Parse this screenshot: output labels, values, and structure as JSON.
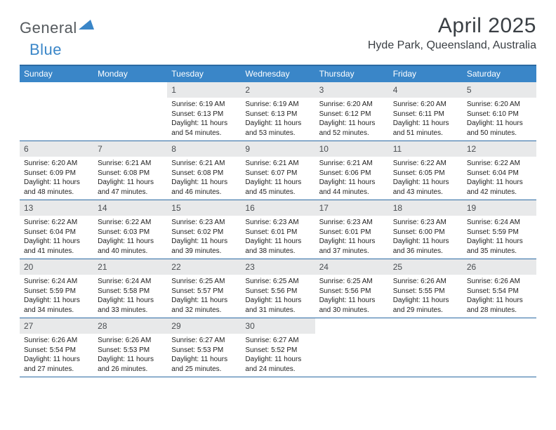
{
  "brand": {
    "part1": "General",
    "part2": "Blue"
  },
  "title": "April 2025",
  "location": "Hyde Park, Queensland, Australia",
  "colors": {
    "header_bg": "#3a86c8",
    "rule": "#2b6aa3",
    "daynum_bg": "#e8e9ea",
    "text": "#222222",
    "title_text": "#3a3f44",
    "logo_gray": "#555a5e",
    "logo_blue": "#3a86c8",
    "page_bg": "#ffffff"
  },
  "dow": [
    "Sunday",
    "Monday",
    "Tuesday",
    "Wednesday",
    "Thursday",
    "Friday",
    "Saturday"
  ],
  "first_dow_index": 2,
  "days": [
    {
      "n": 1,
      "sunrise": "6:19 AM",
      "sunset": "6:13 PM",
      "daylight": "11 hours and 54 minutes."
    },
    {
      "n": 2,
      "sunrise": "6:19 AM",
      "sunset": "6:13 PM",
      "daylight": "11 hours and 53 minutes."
    },
    {
      "n": 3,
      "sunrise": "6:20 AM",
      "sunset": "6:12 PM",
      "daylight": "11 hours and 52 minutes."
    },
    {
      "n": 4,
      "sunrise": "6:20 AM",
      "sunset": "6:11 PM",
      "daylight": "11 hours and 51 minutes."
    },
    {
      "n": 5,
      "sunrise": "6:20 AM",
      "sunset": "6:10 PM",
      "daylight": "11 hours and 50 minutes."
    },
    {
      "n": 6,
      "sunrise": "6:20 AM",
      "sunset": "6:09 PM",
      "daylight": "11 hours and 48 minutes."
    },
    {
      "n": 7,
      "sunrise": "6:21 AM",
      "sunset": "6:08 PM",
      "daylight": "11 hours and 47 minutes."
    },
    {
      "n": 8,
      "sunrise": "6:21 AM",
      "sunset": "6:08 PM",
      "daylight": "11 hours and 46 minutes."
    },
    {
      "n": 9,
      "sunrise": "6:21 AM",
      "sunset": "6:07 PM",
      "daylight": "11 hours and 45 minutes."
    },
    {
      "n": 10,
      "sunrise": "6:21 AM",
      "sunset": "6:06 PM",
      "daylight": "11 hours and 44 minutes."
    },
    {
      "n": 11,
      "sunrise": "6:22 AM",
      "sunset": "6:05 PM",
      "daylight": "11 hours and 43 minutes."
    },
    {
      "n": 12,
      "sunrise": "6:22 AM",
      "sunset": "6:04 PM",
      "daylight": "11 hours and 42 minutes."
    },
    {
      "n": 13,
      "sunrise": "6:22 AM",
      "sunset": "6:04 PM",
      "daylight": "11 hours and 41 minutes."
    },
    {
      "n": 14,
      "sunrise": "6:22 AM",
      "sunset": "6:03 PM",
      "daylight": "11 hours and 40 minutes."
    },
    {
      "n": 15,
      "sunrise": "6:23 AM",
      "sunset": "6:02 PM",
      "daylight": "11 hours and 39 minutes."
    },
    {
      "n": 16,
      "sunrise": "6:23 AM",
      "sunset": "6:01 PM",
      "daylight": "11 hours and 38 minutes."
    },
    {
      "n": 17,
      "sunrise": "6:23 AM",
      "sunset": "6:01 PM",
      "daylight": "11 hours and 37 minutes."
    },
    {
      "n": 18,
      "sunrise": "6:23 AM",
      "sunset": "6:00 PM",
      "daylight": "11 hours and 36 minutes."
    },
    {
      "n": 19,
      "sunrise": "6:24 AM",
      "sunset": "5:59 PM",
      "daylight": "11 hours and 35 minutes."
    },
    {
      "n": 20,
      "sunrise": "6:24 AM",
      "sunset": "5:59 PM",
      "daylight": "11 hours and 34 minutes."
    },
    {
      "n": 21,
      "sunrise": "6:24 AM",
      "sunset": "5:58 PM",
      "daylight": "11 hours and 33 minutes."
    },
    {
      "n": 22,
      "sunrise": "6:25 AM",
      "sunset": "5:57 PM",
      "daylight": "11 hours and 32 minutes."
    },
    {
      "n": 23,
      "sunrise": "6:25 AM",
      "sunset": "5:56 PM",
      "daylight": "11 hours and 31 minutes."
    },
    {
      "n": 24,
      "sunrise": "6:25 AM",
      "sunset": "5:56 PM",
      "daylight": "11 hours and 30 minutes."
    },
    {
      "n": 25,
      "sunrise": "6:26 AM",
      "sunset": "5:55 PM",
      "daylight": "11 hours and 29 minutes."
    },
    {
      "n": 26,
      "sunrise": "6:26 AM",
      "sunset": "5:54 PM",
      "daylight": "11 hours and 28 minutes."
    },
    {
      "n": 27,
      "sunrise": "6:26 AM",
      "sunset": "5:54 PM",
      "daylight": "11 hours and 27 minutes."
    },
    {
      "n": 28,
      "sunrise": "6:26 AM",
      "sunset": "5:53 PM",
      "daylight": "11 hours and 26 minutes."
    },
    {
      "n": 29,
      "sunrise": "6:27 AM",
      "sunset": "5:53 PM",
      "daylight": "11 hours and 25 minutes."
    },
    {
      "n": 30,
      "sunrise": "6:27 AM",
      "sunset": "5:52 PM",
      "daylight": "11 hours and 24 minutes."
    }
  ],
  "labels": {
    "sunrise": "Sunrise:",
    "sunset": "Sunset:",
    "daylight": "Daylight:"
  }
}
